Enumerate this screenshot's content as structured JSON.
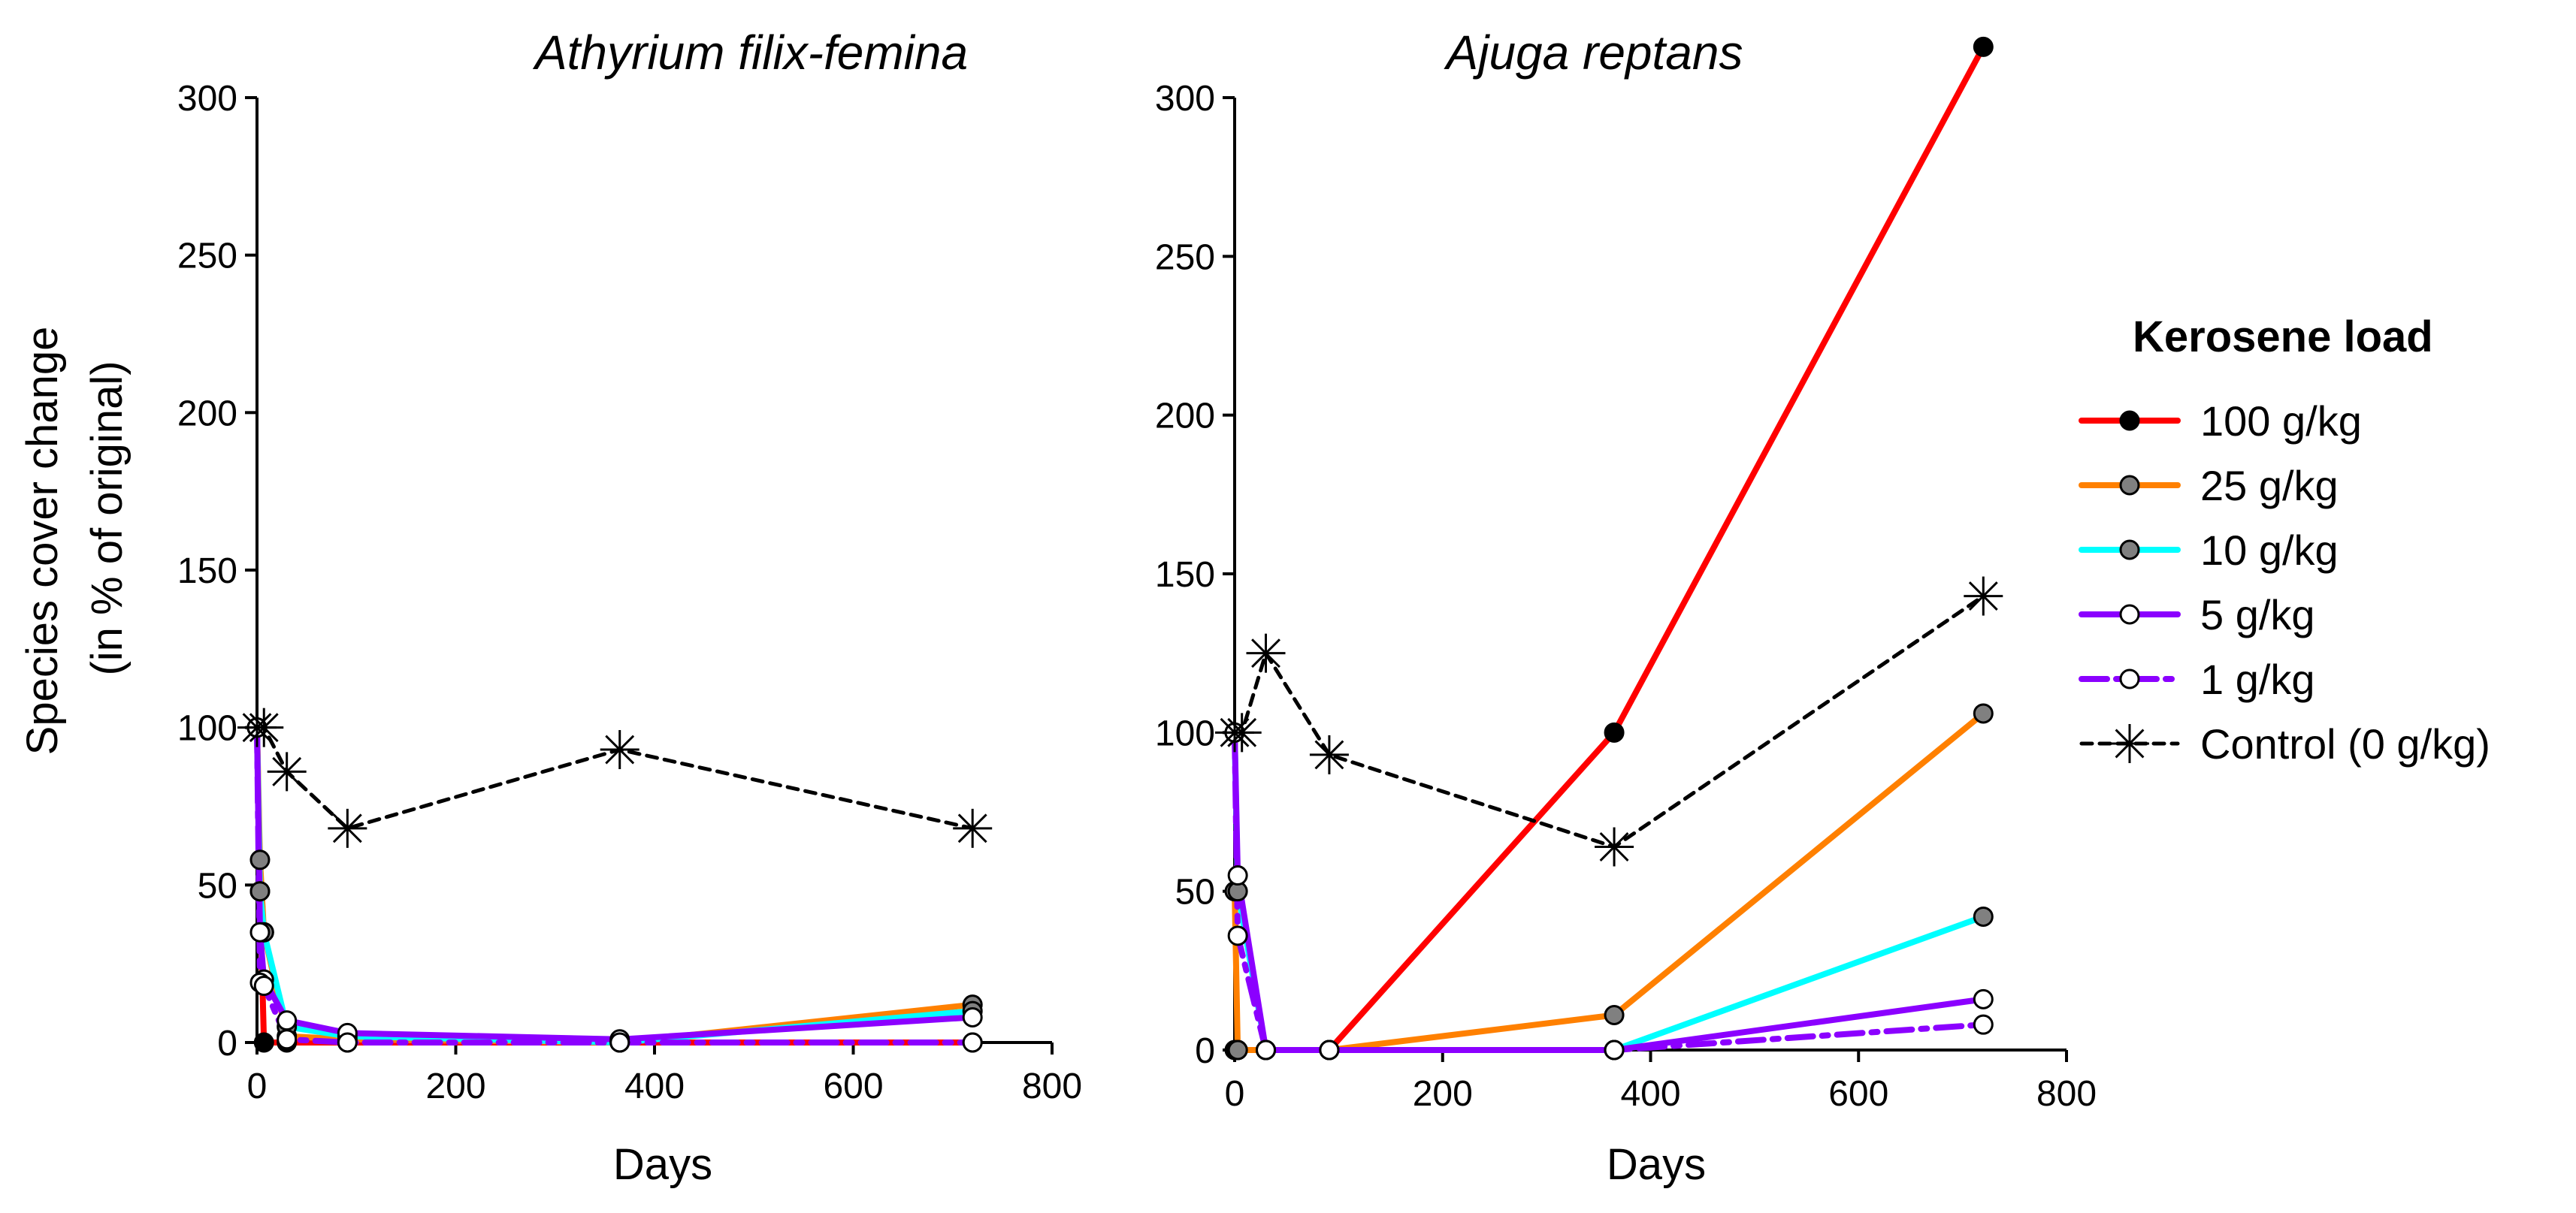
{
  "chart_data": [
    {
      "type": "line",
      "title": "Athyrium filix-femina",
      "xlabel": "Days",
      "ylabel": "Species cover change",
      "ylabel2": "(in % of original)",
      "xlim": [
        0,
        800
      ],
      "ylim": [
        0,
        300
      ],
      "xticks": [
        "0",
        "200",
        "400",
        "600",
        "800"
      ],
      "yticks": [
        "0",
        "50",
        "100",
        "150",
        "200",
        "250",
        "300"
      ],
      "series": [
        {
          "name": "100 g/kg",
          "color": "#ff0000",
          "marker": "#000000",
          "dash": "solid",
          "x": [
            0,
            3,
            7,
            30,
            91,
            365,
            720
          ],
          "y": [
            100,
            48,
            0,
            0,
            0,
            0,
            0
          ]
        },
        {
          "name": "25 g/kg",
          "color": "#ff8000",
          "marker": "#808080",
          "dash": "solid",
          "x": [
            0,
            3,
            7,
            30,
            91,
            365,
            720
          ],
          "y": [
            100,
            58,
            35,
            2,
            1,
            0,
            12
          ]
        },
        {
          "name": "10 g/kg",
          "color": "#00ffff",
          "marker": "#808080",
          "dash": "solid",
          "x": [
            0,
            3,
            7,
            30,
            91,
            365,
            720
          ],
          "y": [
            100,
            48,
            35,
            5,
            2,
            0,
            10
          ]
        },
        {
          "name": "5 g/kg",
          "color": "#8b00ff",
          "marker": "#ffffff",
          "dash": "solid",
          "x": [
            0,
            3,
            7,
            30,
            91,
            365,
            720
          ],
          "y": [
            100,
            35,
            20,
            7,
            3,
            1,
            8
          ]
        },
        {
          "name": "1 g/kg",
          "color": "#8b00ff",
          "marker": "#ffffff",
          "dash": "dashdot",
          "x": [
            0,
            3,
            7,
            30,
            91,
            365,
            720
          ],
          "y": [
            100,
            19,
            18,
            1,
            0,
            0,
            0
          ]
        },
        {
          "name": "Control (0 g/kg)",
          "color": "#000000",
          "marker": "star",
          "dash": "dotted",
          "x": [
            0,
            7,
            30,
            91,
            365,
            720
          ],
          "y": [
            100,
            100,
            86,
            68,
            93,
            68
          ]
        }
      ]
    },
    {
      "type": "line",
      "title": "Ajuga reptans",
      "xlabel": "Days",
      "ylabel": "",
      "xlim": [
        0,
        800
      ],
      "ylim": [
        0,
        300
      ],
      "xticks": [
        "0",
        "200",
        "400",
        "600",
        "800"
      ],
      "yticks": [
        "0",
        "50",
        "100",
        "150",
        "200",
        "250",
        "300"
      ],
      "series": [
        {
          "name": "100 g/kg",
          "color": "#ff0000",
          "marker": "#000000",
          "dash": "solid",
          "x": [
            0,
            3,
            30,
            91,
            365,
            720
          ],
          "y": [
            0,
            0,
            0,
            0,
            100,
            316
          ]
        },
        {
          "name": "25 g/kg",
          "color": "#ff8000",
          "marker": "#808080",
          "dash": "solid",
          "x": [
            0,
            3,
            30,
            91,
            365,
            720
          ],
          "y": [
            50,
            0,
            0,
            0,
            11,
            106
          ]
        },
        {
          "name": "10 g/kg",
          "color": "#00ffff",
          "marker": "#808080",
          "dash": "solid",
          "x": [
            0,
            3,
            30,
            91,
            365,
            720
          ],
          "y": [
            100,
            50,
            0,
            0,
            0,
            42
          ]
        },
        {
          "name": "5 g/kg",
          "color": "#8b00ff",
          "marker": "#ffffff",
          "dash": "solid",
          "x": [
            0,
            3,
            30,
            91,
            365,
            720
          ],
          "y": [
            100,
            55,
            0,
            0,
            0,
            16
          ]
        },
        {
          "name": "1 g/kg",
          "color": "#8b00ff",
          "marker": "#ffffff",
          "dash": "dashdot",
          "x": [
            0,
            3,
            30,
            91,
            365,
            720
          ],
          "y": [
            100,
            36,
            0,
            0,
            0,
            8
          ]
        },
        {
          "name": "Control (0 g/kg)",
          "color": "#000000",
          "marker": "star",
          "dash": "dotted",
          "x": [
            0,
            7,
            30,
            91,
            365,
            720
          ],
          "y": [
            100,
            100,
            125,
            93,
            64,
            143
          ]
        }
      ]
    }
  ],
  "legend": {
    "title": "Kerosene load",
    "placement": "right",
    "items": [
      {
        "label": "100 g/kg",
        "color": "#ff0000",
        "marker": "#000000",
        "dash": "solid"
      },
      {
        "label": "25 g/kg",
        "color": "#ff8000",
        "marker": "#808080",
        "dash": "solid"
      },
      {
        "label": "10 g/kg",
        "color": "#00ffff",
        "marker": "#808080",
        "dash": "solid"
      },
      {
        "label": "5 g/kg",
        "color": "#8b00ff",
        "marker": "#ffffff",
        "dash": "solid"
      },
      {
        "label": "1 g/kg",
        "color": "#8b00ff",
        "marker": "#ffffff",
        "dash": "dashdot"
      },
      {
        "label": "Control (0 g/kg)",
        "color": "#000000",
        "marker": "star",
        "dash": "dotted"
      }
    ]
  }
}
